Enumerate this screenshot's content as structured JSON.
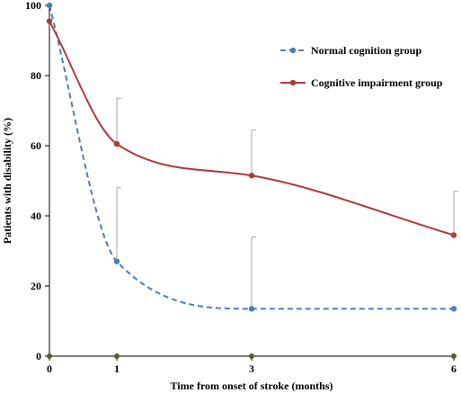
{
  "chart_data": {
    "type": "line",
    "xlabel": "Time from onset of stroke (months)",
    "ylabel": "Patients with disability (%)",
    "xlim": [
      0,
      6
    ],
    "ylim": [
      0,
      100
    ],
    "xticks": [
      0,
      1,
      3,
      6
    ],
    "yticks": [
      0,
      20,
      40,
      60,
      80,
      100
    ],
    "legend_position": "top-right",
    "grid": false,
    "series": [
      {
        "name": "Normal cognition group",
        "color": "#4a7ebb",
        "line_style": "dashed",
        "x": [
          0,
          1,
          3,
          6
        ],
        "y": [
          100,
          27,
          13.5,
          13.5
        ],
        "error_upper": [
          null,
          48,
          34,
          null
        ]
      },
      {
        "name": "Cognitive impairment group",
        "color": "#b03a3a",
        "line_style": "solid",
        "x": [
          0,
          1,
          3,
          6
        ],
        "y": [
          95.5,
          60.5,
          51.5,
          34.5
        ],
        "error_upper": [
          null,
          73.5,
          64.5,
          47
        ]
      }
    ],
    "baseline_marker_color": "#4f6228"
  }
}
